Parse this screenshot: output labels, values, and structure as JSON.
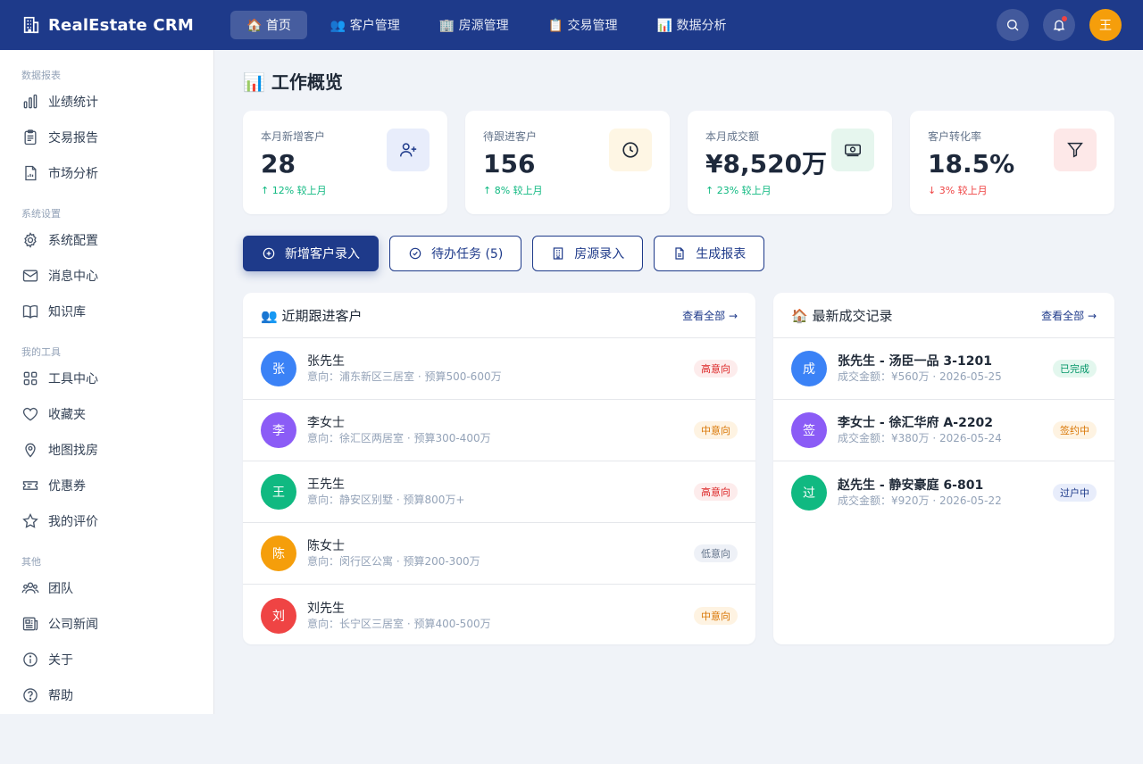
{
  "header": {
    "brand_title": "RealEstate CRM",
    "nav": [
      {
        "label": "🏠 首页",
        "active": true
      },
      {
        "label": "👥 客户管理"
      },
      {
        "label": "🏢 房源管理"
      },
      {
        "label": "📋 交易管理"
      },
      {
        "label": "📊 数据分析"
      }
    ],
    "avatar_text": "王"
  },
  "sidebar": {
    "groups": [
      {
        "title": "数据报表",
        "items": [
          "业绩统计",
          "交易报告",
          "市场分析"
        ]
      },
      {
        "title": "系统设置",
        "items": [
          "系统配置",
          "消息中心",
          "知识库"
        ]
      },
      {
        "title": "我的工具",
        "items": [
          "工具中心",
          "收藏夹",
          "地图找房",
          "优惠券",
          "我的评价"
        ]
      },
      {
        "title": "其他",
        "items": [
          "团队",
          "公司新闻",
          "关于",
          "帮助"
        ]
      }
    ]
  },
  "main": {
    "page_title": "📊 工作概览",
    "stats": [
      {
        "label": "本月新增客户",
        "value": "28",
        "trend": "↑ 12% 较上月",
        "dir": "up",
        "icon": "user-plus-icon",
        "bg": "#e8edfb",
        "fg": "#1e3a8a"
      },
      {
        "label": "待跟进客户",
        "value": "156",
        "trend": "↑ 8% 较上月",
        "dir": "up",
        "icon": "clock-icon",
        "bg": "#fef6e4",
        "fg": "#1f2937"
      },
      {
        "label": "本月成交额",
        "value": "¥8,520万",
        "trend": "↑ 23% 较上月",
        "dir": "up",
        "icon": "money-icon",
        "bg": "#e6f6ee",
        "fg": "#1f2937"
      },
      {
        "label": "客户转化率",
        "value": "18.5%",
        "trend": "↓ 3% 较上月",
        "dir": "down",
        "icon": "funnel-icon",
        "bg": "#fde8e8",
        "fg": "#1f2937"
      }
    ],
    "actions": [
      {
        "label": "新增客户录入",
        "icon": "plus-circle-icon",
        "primary": true
      },
      {
        "label": "待办任务 (5)",
        "icon": "check-circle-icon"
      },
      {
        "label": "房源录入",
        "icon": "building-icon"
      },
      {
        "label": "生成报表",
        "icon": "document-icon"
      }
    ],
    "left_panel": {
      "title": "👥 近期跟进客户",
      "link": "查看全部 →",
      "rows": [
        {
          "avatar": "张",
          "color": "#3b82f6",
          "name": "张先生",
          "sub": "意向：浦东新区三居室 · 预算500-600万",
          "badge": "高意向",
          "badge_bg": "#fdecec",
          "badge_fg": "#dc2626"
        },
        {
          "avatar": "李",
          "color": "#8b5cf6",
          "name": "李女士",
          "sub": "意向：徐汇区两居室 · 预算300-400万",
          "badge": "中意向",
          "badge_bg": "#fef3e2",
          "badge_fg": "#d97706"
        },
        {
          "avatar": "王",
          "color": "#10b981",
          "name": "王先生",
          "sub": "意向：静安区别墅 · 预算800万+",
          "badge": "高意向",
          "badge_bg": "#fdecec",
          "badge_fg": "#dc2626"
        },
        {
          "avatar": "陈",
          "color": "#f59e0b",
          "name": "陈女士",
          "sub": "意向：闵行区公寓 · 预算200-300万",
          "badge": "低意向",
          "badge_bg": "#eef1f7",
          "badge_fg": "#64748b"
        },
        {
          "avatar": "刘",
          "color": "#ef4444",
          "name": "刘先生",
          "sub": "意向：长宁区三居室 · 预算400-500万",
          "badge": "中意向",
          "badge_bg": "#fef3e2",
          "badge_fg": "#d97706"
        }
      ]
    },
    "right_panel": {
      "title": "🏠 最新成交记录",
      "link": "查看全部 →",
      "rows": [
        {
          "avatar": "成",
          "color": "#3b82f6",
          "name": "张先生 - 汤臣一品 3-1201",
          "sub": "成交金额：¥560万 · 2026-05-25",
          "badge": "已完成",
          "badge_bg": "#e3f7ee",
          "badge_fg": "#059669"
        },
        {
          "avatar": "签",
          "color": "#8b5cf6",
          "name": "李女士 - 徐汇华府 A-2202",
          "sub": "成交金额：¥380万 · 2026-05-24",
          "badge": "签约中",
          "badge_bg": "#fef3e2",
          "badge_fg": "#d97706"
        },
        {
          "avatar": "过",
          "color": "#10b981",
          "name": "赵先生 - 静安豪庭 6-801",
          "sub": "成交金额：¥920万 · 2026-05-22",
          "badge": "过户中",
          "badge_bg": "#e8edfb",
          "badge_fg": "#1e3a8a"
        }
      ]
    }
  }
}
